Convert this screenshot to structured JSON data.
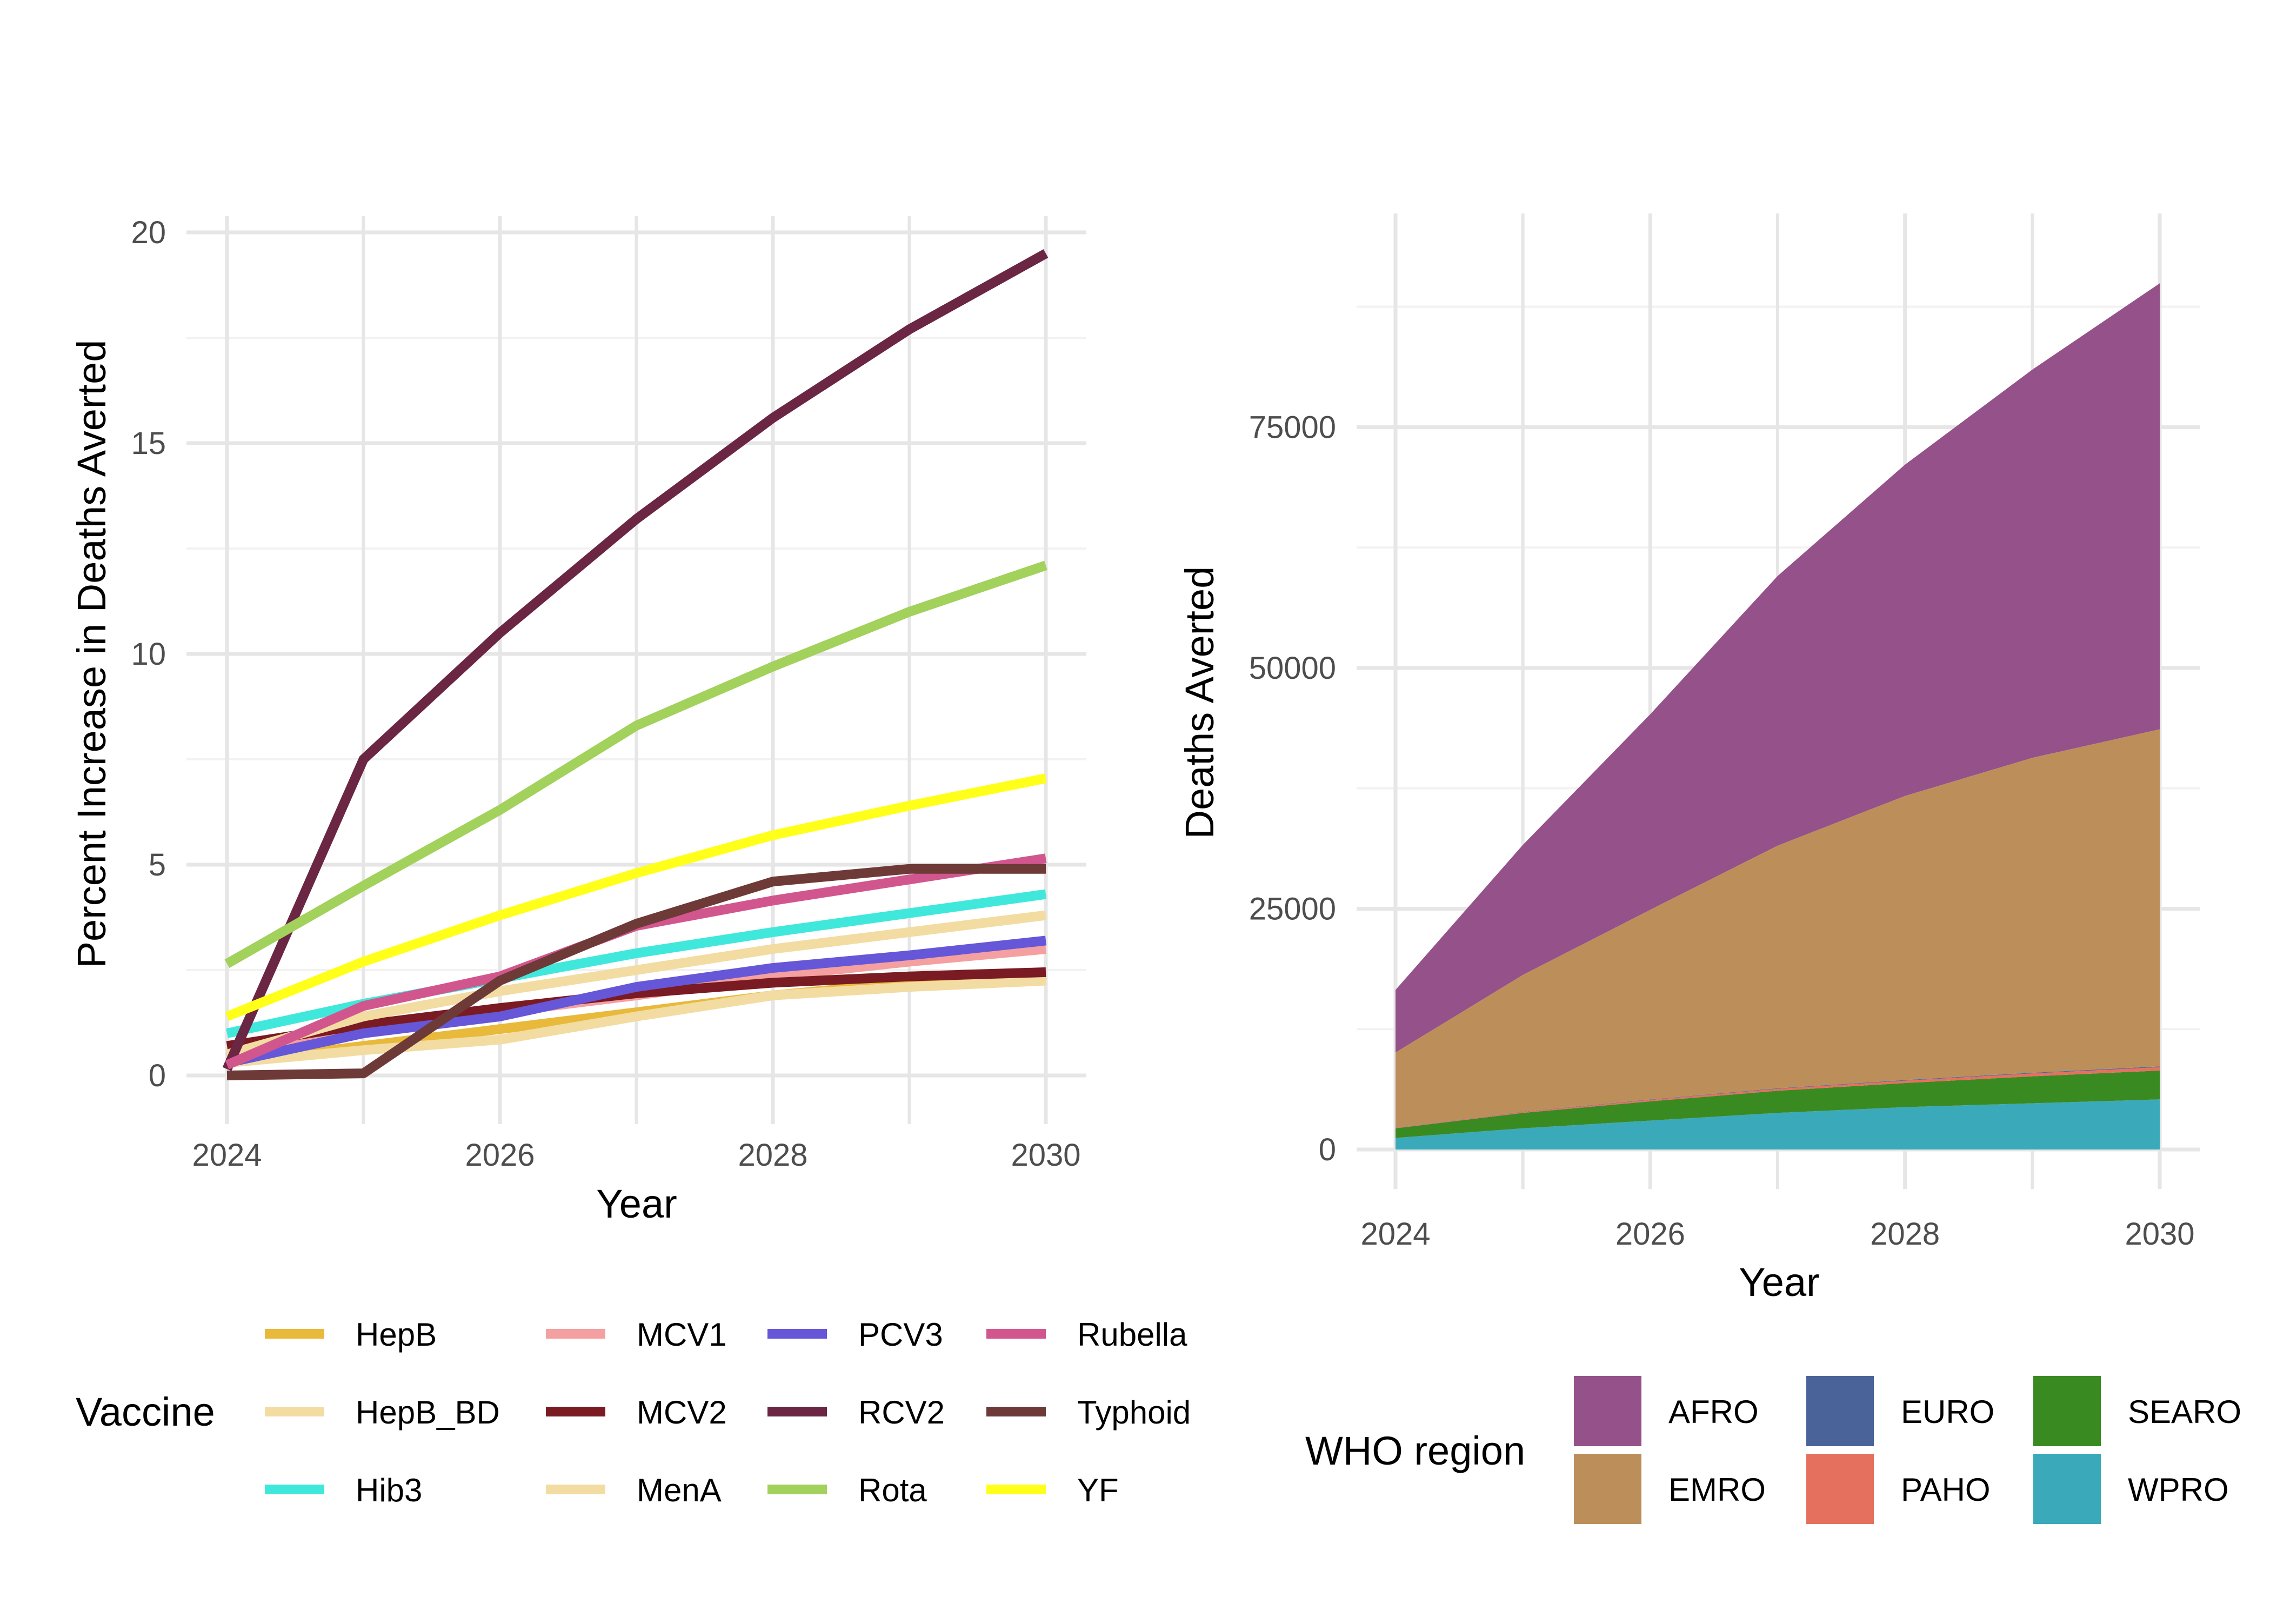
{
  "chart_data": [
    {
      "type": "line",
      "xlabel": "Year",
      "ylabel": "Percent Increase in Deaths Averted",
      "x": [
        2024,
        2025,
        2026,
        2027,
        2028,
        2029,
        2030
      ],
      "x_ticks": [
        "2024",
        "2026",
        "2028",
        "2030"
      ],
      "y_ticks": [
        "0",
        "5",
        "10",
        "15",
        "20"
      ],
      "xlim": [
        2024,
        2030
      ],
      "ylim": [
        0,
        20
      ],
      "grid": true,
      "legend": {
        "title": "Vaccine",
        "placement": "bottom"
      },
      "series": [
        {
          "name": "HepB",
          "color": "#E8B93A",
          "values": [
            0.3,
            0.7,
            1.1,
            1.5,
            1.9,
            2.2,
            2.4
          ]
        },
        {
          "name": "HepB_BD",
          "color": "#F2DCA2",
          "values": [
            0.3,
            0.6,
            0.85,
            1.4,
            1.9,
            2.1,
            2.25
          ]
        },
        {
          "name": "Hib3",
          "color": "#40E8DC",
          "values": [
            1.0,
            1.7,
            2.3,
            2.9,
            3.4,
            3.85,
            4.3
          ]
        },
        {
          "name": "MCV1",
          "color": "#F4A0A0",
          "values": [
            0.45,
            1.0,
            1.5,
            1.9,
            2.35,
            2.7,
            3.0
          ]
        },
        {
          "name": "MCV2",
          "color": "#7A1A22",
          "values": [
            0.7,
            1.2,
            1.6,
            1.95,
            2.2,
            2.35,
            2.45
          ]
        },
        {
          "name": "MenA",
          "color": "#F2DCA2",
          "values": [
            0.5,
            1.4,
            2.0,
            2.5,
            3.0,
            3.4,
            3.8
          ]
        },
        {
          "name": "PCV3",
          "color": "#6656D8",
          "values": [
            0.3,
            1.0,
            1.4,
            2.1,
            2.55,
            2.85,
            3.2
          ]
        },
        {
          "name": "RCV2",
          "color": "#6A2642",
          "values": [
            0.15,
            7.5,
            10.5,
            13.2,
            15.6,
            17.7,
            19.5
          ]
        },
        {
          "name": "Rota",
          "color": "#A2D15C",
          "values": [
            2.65,
            4.5,
            6.3,
            8.3,
            9.7,
            11.0,
            12.1
          ]
        },
        {
          "name": "Rubella",
          "color": "#D2568E",
          "values": [
            0.25,
            1.65,
            2.35,
            3.55,
            4.15,
            4.65,
            5.15
          ]
        },
        {
          "name": "Typhoid",
          "color": "#6E3A38",
          "values": [
            0.0,
            0.05,
            2.25,
            3.6,
            4.6,
            4.9,
            4.9
          ]
        },
        {
          "name": "YF",
          "color": "#FFFF1A",
          "values": [
            1.4,
            2.7,
            3.8,
            4.8,
            5.7,
            6.4,
            7.05
          ]
        }
      ]
    },
    {
      "type": "area",
      "stacked": true,
      "xlabel": "Year",
      "ylabel": "Deaths Averted",
      "x": [
        2024,
        2025,
        2026,
        2027,
        2028,
        2029,
        2030
      ],
      "x_ticks": [
        "2024",
        "2026",
        "2028",
        "2030"
      ],
      "y_ticks": [
        "0",
        "25000",
        "50000",
        "75000"
      ],
      "xlim": [
        2024,
        2030
      ],
      "ylim": [
        0,
        90000
      ],
      "grid": true,
      "legend": {
        "title": "WHO region",
        "placement": "bottom"
      },
      "series": [
        {
          "name": "WPRO",
          "color": "#3AAABB",
          "values": [
            1200,
            2200,
            3000,
            3800,
            4400,
            4800,
            5200
          ]
        },
        {
          "name": "SEARO",
          "color": "#3A8A22",
          "values": [
            1000,
            1600,
            2000,
            2300,
            2500,
            2800,
            3000
          ]
        },
        {
          "name": "PAHO",
          "color": "#E6705E",
          "values": [
            50,
            100,
            150,
            200,
            250,
            300,
            350
          ]
        },
        {
          "name": "EURO",
          "color": "#4A6499",
          "values": [
            20,
            30,
            40,
            50,
            60,
            70,
            80
          ]
        },
        {
          "name": "EMRO",
          "color": "#BC8F5A",
          "values": [
            7800,
            14200,
            19700,
            25200,
            29500,
            32700,
            35000
          ]
        },
        {
          "name": "AFRO",
          "color": "#955189",
          "values": [
            6500,
            13500,
            20300,
            28000,
            34400,
            40300,
            46300
          ]
        }
      ],
      "legend_order": [
        "AFRO",
        "EMRO",
        "EURO",
        "PAHO",
        "SEARO",
        "WPRO"
      ]
    }
  ]
}
